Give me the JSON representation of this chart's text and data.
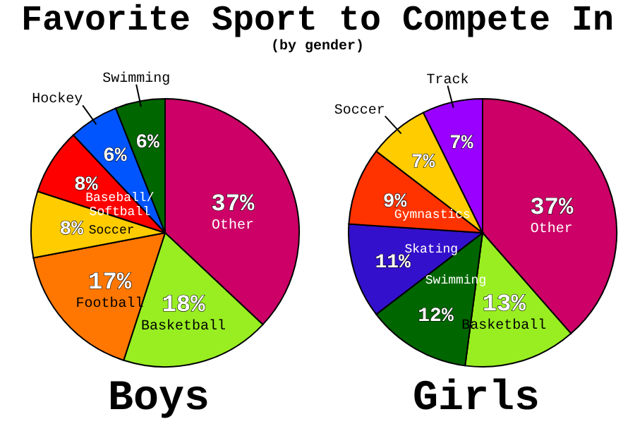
{
  "chart_data": [
    {
      "type": "pie",
      "title": "Favorite Sport to Compete In",
      "subtitle": "(by gender)",
      "xlabel": "Boys",
      "categories": [
        "Other",
        "Basketball",
        "Football",
        "Soccer",
        "Baseball/Softball",
        "Hockey",
        "Swimming"
      ],
      "values": [
        37,
        18,
        17,
        8,
        8,
        6,
        6
      ],
      "value_labels": [
        "37%",
        "18%",
        "17%",
        "8%",
        "8%",
        "6%",
        "6%"
      ],
      "colors": [
        "#cc0066",
        "#99ee22",
        "#ff7700",
        "#ffcc00",
        "#ff0000",
        "#0055ff",
        "#006600"
      ]
    },
    {
      "type": "pie",
      "xlabel": "Girls",
      "categories": [
        "Other",
        "Basketball",
        "Swimming",
        "Skating",
        "Gymnastics",
        "Soccer",
        "Track"
      ],
      "values": [
        37,
        13,
        12,
        11,
        9,
        7,
        7
      ],
      "value_labels": [
        "37%",
        "13%",
        "12%",
        "11%",
        "9%",
        "7%",
        "7%"
      ],
      "colors": [
        "#cc0066",
        "#99ee22",
        "#006600",
        "#3311cc",
        "#ff3300",
        "#ffcc00",
        "#9900ff"
      ]
    }
  ]
}
